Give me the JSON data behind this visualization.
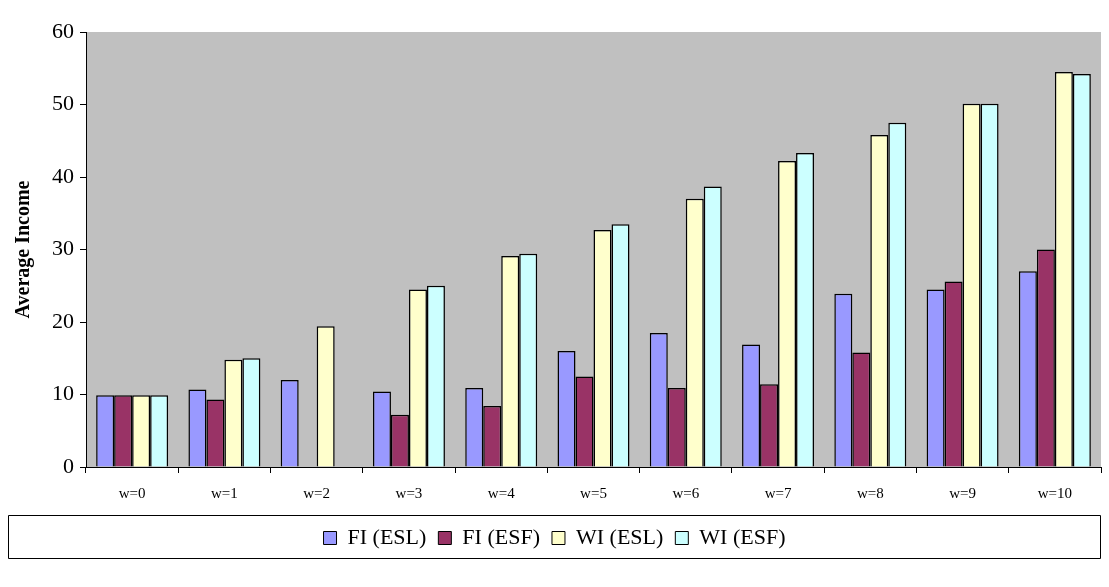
{
  "chart_data": {
    "type": "bar",
    "ylabel": "Average Income",
    "categories": [
      "w=0",
      "w=1",
      "w=2",
      "w=3",
      "w=4",
      "w=5",
      "w=6",
      "w=7",
      "w=8",
      "w=9",
      "w=10"
    ],
    "series": [
      {
        "name": "FI (ESL)",
        "color": "#9999ff",
        "values": [
          9.9,
          10.7,
          12,
          10.4,
          10.9,
          16,
          18.5,
          16.9,
          23.9,
          24.5,
          27
        ]
      },
      {
        "name": "FI (ESF)",
        "color": "#993366",
        "values": [
          9.9,
          9.3,
          null,
          7.2,
          8.4,
          12.5,
          10.9,
          11.4,
          15.8,
          25.6,
          30
        ]
      },
      {
        "name": "WI (ESL)",
        "color": "#ffffcc",
        "values": [
          9.9,
          14.8,
          19.4,
          24.5,
          29.1,
          32.7,
          37,
          42.2,
          45.8,
          50.1,
          54.5
        ]
      },
      {
        "name": "WI (ESF)",
        "color": "#ccffff",
        "values": [
          9.9,
          15,
          null,
          25,
          29.4,
          33.5,
          38.7,
          43.3,
          47.5,
          50.1,
          54.2
        ]
      }
    ],
    "ylim": [
      0,
      60
    ],
    "yticks": [
      0,
      10,
      20,
      30,
      40,
      50,
      60
    ],
    "grid": false,
    "legend": "bottom"
  }
}
